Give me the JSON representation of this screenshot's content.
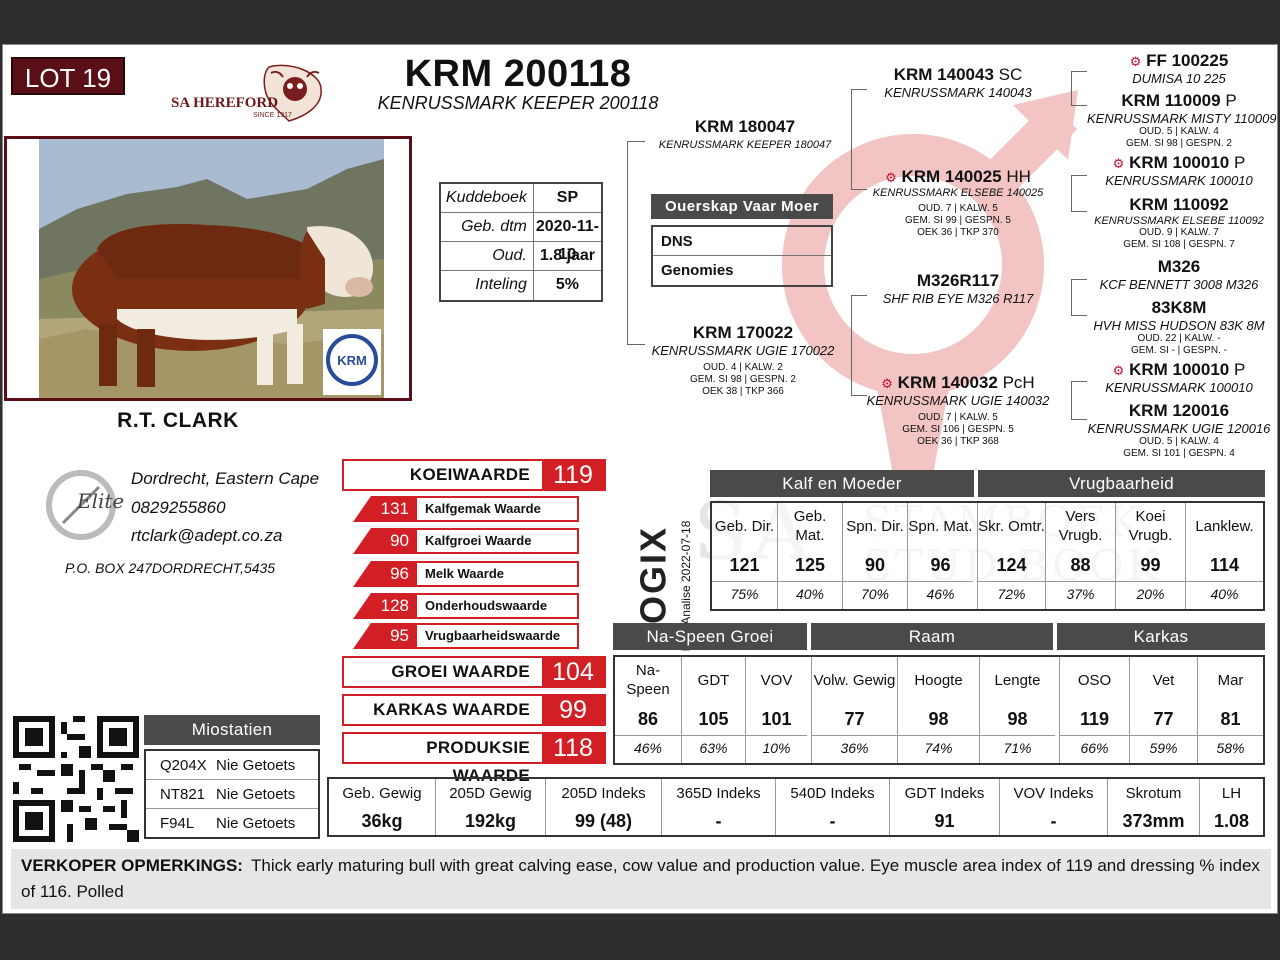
{
  "lot": "LOT 19",
  "breed_logo": {
    "text": "SA HEREFORD",
    "since": "SINCE 1917"
  },
  "animal": {
    "id": "KRM 200118",
    "name": "KENRUSSMARK KEEPER 200118"
  },
  "owner": "R.T. CLARK",
  "info": [
    {
      "label": "Kuddeboek",
      "value": "SP"
    },
    {
      "label": "Geb. dtm",
      "value": "2020-11-10"
    },
    {
      "label": "Oud.",
      "value": "1.8 jaar"
    },
    {
      "label": "Inteling",
      "value": "5%"
    }
  ],
  "ouerskap": {
    "header": "Ouerskap  Vaar  Moer",
    "rows": [
      "DNS",
      "Genomies"
    ]
  },
  "pedigree": {
    "sire": {
      "id": "KRM 180047",
      "name": "KENRUSSMARK KEEPER 180047"
    },
    "dam": {
      "id": "KRM 170022",
      "name": "KENRUSSMARK UGIE 170022",
      "stats1": "OUD. 4 | KALW. 2",
      "stats2": "GEM. SI 98 | GESPN. 2",
      "stats3": "OEK 38 | TKP 366"
    },
    "ss": {
      "id": "KRM 140043",
      "suffix": "SC",
      "name": "KENRUSSMARK 140043"
    },
    "sd": {
      "id": "KRM 140025",
      "suffix": "HH",
      "name": "KENRUSSMARK ELSEBE 140025",
      "stats1": "OUD. 7 | KALW. 5",
      "stats2": "GEM. SI 99 | GESPN. 5",
      "stats3": "OEK 36 | TKP 370"
    },
    "ds": {
      "id": "M326R117",
      "name": "SHF RIB EYE M326 R117"
    },
    "dd": {
      "id": "KRM 140032",
      "suffix": "PcH",
      "name": "KENRUSSMARK UGIE 140032",
      "stats1": "OUD. 7 | KALW. 5",
      "stats2": "GEM. SI 106 | GESPN. 5",
      "stats3": "OEK 36 | TKP 368"
    },
    "sss": {
      "id": "FF 100225",
      "name": "DUMISA 10 225"
    },
    "ssd": {
      "id": "KRM 110009",
      "suffix": "P",
      "name": "KENRUSSMARK MISTY 110009",
      "stats1": "OUD. 5 | KALW. 4",
      "stats2": "GEM. SI 98 | GESPN. 2"
    },
    "sds": {
      "id": "KRM 100010",
      "suffix": "P",
      "name": "KENRUSSMARK 100010"
    },
    "sdd": {
      "id": "KRM 110092",
      "name": "KENRUSSMARK ELSEBE 110092",
      "stats1": "OUD. 9 | KALW. 7",
      "stats2": "GEM. SI 108 | GESPN. 7"
    },
    "dss": {
      "id": "M326",
      "name": "KCF BENNETT 3008 M326"
    },
    "dsd": {
      "id": "83K8M",
      "name": "HVH MISS HUDSON 83K 8M",
      "stats1": "OUD. 22 | KALW. -",
      "stats2": "GEM. SI - | GESPN. -"
    },
    "dds": {
      "id": "KRM 100010",
      "suffix": "P",
      "name": "KENRUSSMARK 100010"
    },
    "ddd": {
      "id": "KRM 120016",
      "name": "KENRUSSMARK UGIE 120016",
      "stats1": "OUD. 5 | KALW. 4",
      "stats2": "GEM. SI 101 | GESPN. 4"
    }
  },
  "contact": {
    "location": "Dordrecht, Eastern Cape",
    "phone": "0829255860",
    "email": "rtclark@adept.co.za",
    "pobox": "P.O. BOX 247DORDRECHT,5435",
    "logo_text": "Elite"
  },
  "indexes": {
    "koeiwaarde": {
      "label": "KOEIWAARDE",
      "value": "119"
    },
    "sub": [
      {
        "label": "Kalfgemak Waarde",
        "value": "131"
      },
      {
        "label": "Kalfgroei Waarde",
        "value": "90"
      },
      {
        "label": "Melk Waarde",
        "value": "96"
      },
      {
        "label": "Onderhoudswaarde",
        "value": "128"
      },
      {
        "label": "Vrugbaarheidswaarde",
        "value": "95"
      }
    ],
    "groei": {
      "label": "GROEI WAARDE",
      "value": "104"
    },
    "karkas": {
      "label": "KARKAS WAARDE",
      "value": "99"
    },
    "produksie": {
      "label": "PRODUKSIE WAARDE",
      "value": "118"
    }
  },
  "logix": {
    "brand": "LOGIX",
    "ebv_date": "EBV Analise 2022-07-18"
  },
  "ebv_top": {
    "groups": [
      "Kalf en Moeder",
      "Vrugbaarheid"
    ],
    "cols": [
      {
        "label": "Geb. Dir.",
        "value": "121",
        "acc": "75%"
      },
      {
        "label": "Geb. Mat.",
        "value": "125",
        "acc": "40%"
      },
      {
        "label": "Spn. Dir.",
        "value": "90",
        "acc": "70%"
      },
      {
        "label": "Spn. Mat.",
        "value": "96",
        "acc": "46%"
      },
      {
        "label": "Skr. Omtr.",
        "value": "124",
        "acc": "72%"
      },
      {
        "label": "Vers Vrugb.",
        "value": "88",
        "acc": "37%"
      },
      {
        "label": "Koei Vrugb.",
        "value": "99",
        "acc": "20%"
      },
      {
        "label": "Lanklew.",
        "value": "114",
        "acc": "40%"
      }
    ]
  },
  "ebv_bottom": {
    "groups": [
      "Na-Speen Groei",
      "Raam",
      "Karkas"
    ],
    "cols": [
      {
        "label": "Na-Speen",
        "value": "86",
        "acc": "46%"
      },
      {
        "label": "GDT",
        "value": "105",
        "acc": "63%"
      },
      {
        "label": "VOV",
        "value": "101",
        "acc": "10%"
      },
      {
        "label": "Volw. Gewig",
        "value": "77",
        "acc": "36%"
      },
      {
        "label": "Hoogte",
        "value": "98",
        "acc": "74%"
      },
      {
        "label": "Lengte",
        "value": "98",
        "acc": "71%"
      },
      {
        "label": "OSO",
        "value": "119",
        "acc": "66%"
      },
      {
        "label": "Vet",
        "value": "77",
        "acc": "59%"
      },
      {
        "label": "Mar",
        "value": "81",
        "acc": "58%"
      }
    ]
  },
  "performance": [
    {
      "label": "Geb. Gewig",
      "value": "36kg"
    },
    {
      "label": "205D Gewig",
      "value": "192kg"
    },
    {
      "label": "205D Indeks",
      "value": "99 (48)"
    },
    {
      "label": "365D Indeks",
      "value": "-"
    },
    {
      "label": "540D Indeks",
      "value": "-"
    },
    {
      "label": "GDT Indeks",
      "value": "91"
    },
    {
      "label": "VOV Indeks",
      "value": "-"
    },
    {
      "label": "Skrotum",
      "value": "373mm"
    },
    {
      "label": "LH",
      "value": "1.08"
    }
  ],
  "miostatien": {
    "header": "Miostatien",
    "rows": [
      {
        "marker": "Q204X",
        "status": "Nie Getoets"
      },
      {
        "marker": "NT821",
        "status": "Nie Getoets"
      },
      {
        "marker": "F94L",
        "status": "Nie Getoets"
      }
    ]
  },
  "watermark": {
    "line1": "SA",
    "line2": "STAMBOEK",
    "line3": "STUD BOOK"
  },
  "remarks": {
    "label": "VERKOPER OPMERKINGS:",
    "text": "Thick early maturing bull with great calving ease, cow value and production value. Eye muscle area index of 119 and dressing % index of 116. Polled"
  },
  "colors": {
    "maroon": "#5a0f16",
    "accent_red": "#d21f26",
    "header_grey": "#4a4a4a",
    "watermark_pink": "#f2c4c4"
  }
}
